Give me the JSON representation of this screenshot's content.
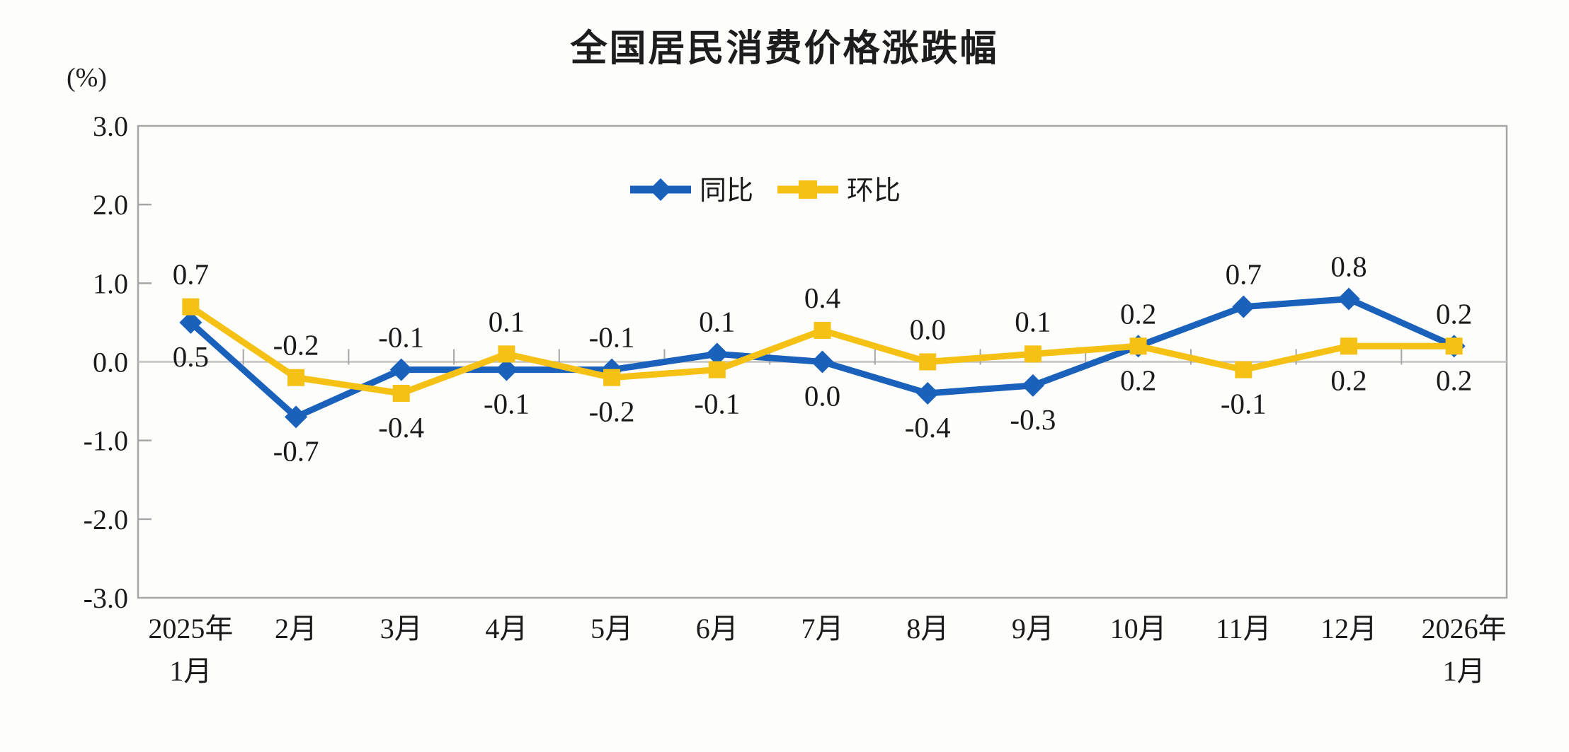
{
  "chart": {
    "title": "全国居民消费价格涨跌幅",
    "unit_label": "(%)"
  },
  "chart_data": {
    "type": "line",
    "title": "全国居民消费价格涨跌幅",
    "xlabel": "",
    "ylabel": "(%)",
    "ylim": [
      -3.0,
      3.0
    ],
    "ytick_step": 1.0,
    "ytick_labels": [
      "3.0",
      "2.0",
      "1.0",
      "0.0",
      "-1.0",
      "-2.0",
      "-3.0"
    ],
    "grid": false,
    "legend_position": "top-center",
    "data_labels": true,
    "categories": [
      [
        "2025年",
        "1月"
      ],
      "2月",
      "3月",
      "4月",
      "5月",
      "6月",
      "7月",
      "8月",
      "9月",
      "10月",
      "11月",
      "12月",
      [
        "2026年",
        "1月"
      ]
    ],
    "series": [
      {
        "name": "同比",
        "key": "yoy",
        "marker": "diamond",
        "color": "#1a61bb",
        "values": [
          0.5,
          -0.7,
          -0.1,
          -0.1,
          -0.1,
          0.1,
          0.0,
          -0.4,
          -0.3,
          0.2,
          0.7,
          0.8,
          0.2
        ]
      },
      {
        "name": "环比",
        "key": "mom",
        "marker": "square",
        "color": "#f5c115",
        "values": [
          0.7,
          -0.2,
          -0.4,
          0.1,
          -0.2,
          -0.1,
          0.4,
          0.0,
          0.1,
          0.2,
          -0.1,
          0.2,
          0.2
        ]
      }
    ]
  },
  "style": {
    "border_color": "#a6a6a6",
    "zero_line_color": "#c2c2c2",
    "tick_color": "#a6a6a6",
    "text_color": "#1a1a1a"
  }
}
